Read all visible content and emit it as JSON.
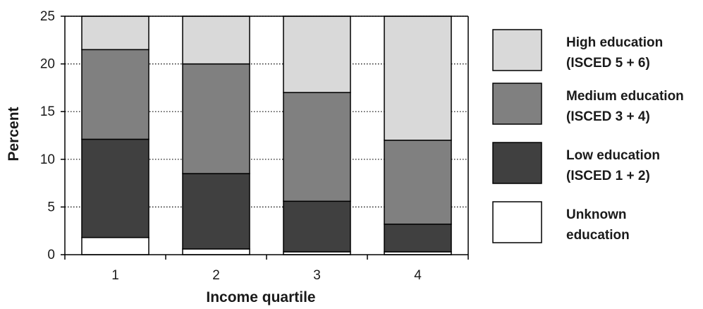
{
  "chart_data": {
    "type": "bar",
    "stacked": true,
    "xlabel": "Income quartile",
    "ylabel": "Percent",
    "ylim": [
      0,
      25
    ],
    "yticks": [
      0,
      5,
      10,
      15,
      20,
      25
    ],
    "grid": "horizontal dotted",
    "legend_position": "right",
    "categories": [
      "1",
      "2",
      "3",
      "4"
    ],
    "series": [
      {
        "name": "Unknown education",
        "color": "#ffffff",
        "values": [
          1.8,
          0.6,
          0.3,
          0.3
        ]
      },
      {
        "name": "Low education (ISCED 1 + 2)",
        "color": "#404040",
        "values": [
          10.3,
          7.9,
          5.3,
          2.9
        ]
      },
      {
        "name": "Medium education (ISCED 3 + 4)",
        "color": "#808080",
        "values": [
          9.4,
          11.5,
          11.4,
          8.8
        ]
      },
      {
        "name": "High education (ISCED 5 + 6)",
        "color": "#d9d9d9",
        "values": [
          3.5,
          5.0,
          8.0,
          13.0
        ]
      }
    ],
    "legend": [
      {
        "lines": [
          "High education",
          "(ISCED 5 + 6)"
        ],
        "color": "#d9d9d9"
      },
      {
        "lines": [
          "Medium education",
          "(ISCED 3 + 4)"
        ],
        "color": "#808080"
      },
      {
        "lines": [
          "Low education",
          "(ISCED 1 + 2)"
        ],
        "color": "#404040"
      },
      {
        "lines": [
          "Unknown",
          "education"
        ],
        "color": "#ffffff"
      }
    ]
  }
}
